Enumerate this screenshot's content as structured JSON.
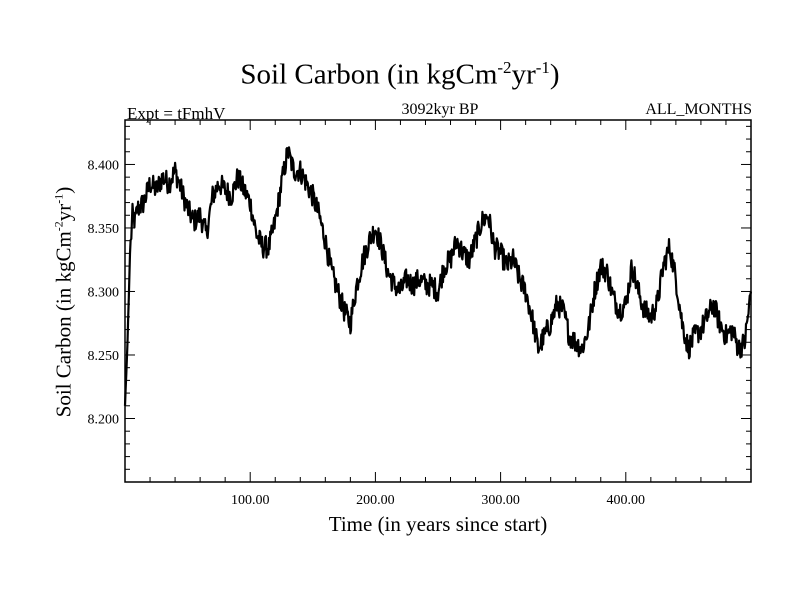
{
  "chart_data": {
    "type": "line",
    "title": {
      "main": "Soil Carbon (in kgCm",
      "exp1": "-2",
      "mid": "yr",
      "exp2": "-1",
      "end": ")"
    },
    "subtitle_left": "Expt = tFmhV",
    "subtitle_center": "3092kyr BP",
    "subtitle_right": "ALL_MONTHS",
    "xlabel": "Time (in years since start)",
    "ylabel": {
      "main": "Soil Carbon (in kgCm",
      "exp1": "-2",
      "mid": "yr",
      "exp2": "-1",
      "end": ")"
    },
    "xlim": [
      0,
      500
    ],
    "ylim": [
      8.15,
      8.435
    ],
    "xticks": [
      100,
      200,
      300,
      400
    ],
    "xtick_labels": [
      "100.00",
      "200.00",
      "300.00",
      "400.00"
    ],
    "yticks": [
      8.2,
      8.25,
      8.3,
      8.35,
      8.4
    ],
    "ytick_labels": [
      "8.200",
      "8.250",
      "8.300",
      "8.350",
      "8.400"
    ],
    "series": [
      {
        "name": "Soil Carbon",
        "color": "#000000",
        "x": [
          0,
          2,
          4,
          6,
          8,
          10,
          15,
          20,
          25,
          30,
          35,
          40,
          45,
          50,
          55,
          60,
          65,
          70,
          75,
          80,
          85,
          90,
          95,
          100,
          105,
          110,
          115,
          120,
          125,
          130,
          135,
          140,
          145,
          150,
          155,
          160,
          165,
          170,
          175,
          180,
          185,
          190,
          195,
          200,
          205,
          210,
          215,
          220,
          225,
          230,
          235,
          240,
          245,
          250,
          255,
          260,
          265,
          270,
          275,
          280,
          285,
          290,
          295,
          300,
          305,
          310,
          315,
          320,
          325,
          330,
          335,
          340,
          345,
          350,
          355,
          360,
          365,
          370,
          375,
          380,
          385,
          390,
          395,
          400,
          405,
          410,
          415,
          420,
          425,
          430,
          435,
          440,
          445,
          450,
          455,
          460,
          465,
          470,
          475,
          480,
          485,
          490,
          495,
          500
        ],
        "y": [
          8.21,
          8.26,
          8.33,
          8.36,
          8.355,
          8.365,
          8.37,
          8.385,
          8.38,
          8.39,
          8.385,
          8.395,
          8.38,
          8.365,
          8.355,
          8.36,
          8.345,
          8.375,
          8.385,
          8.38,
          8.375,
          8.39,
          8.38,
          8.37,
          8.345,
          8.335,
          8.335,
          8.355,
          8.385,
          8.41,
          8.395,
          8.395,
          8.385,
          8.375,
          8.36,
          8.34,
          8.315,
          8.3,
          8.285,
          8.275,
          8.305,
          8.325,
          8.34,
          8.35,
          8.335,
          8.315,
          8.305,
          8.3,
          8.31,
          8.305,
          8.31,
          8.305,
          8.305,
          8.3,
          8.32,
          8.325,
          8.34,
          8.33,
          8.325,
          8.34,
          8.355,
          8.36,
          8.335,
          8.33,
          8.32,
          8.325,
          8.31,
          8.3,
          8.28,
          8.255,
          8.265,
          8.275,
          8.29,
          8.285,
          8.265,
          8.26,
          8.255,
          8.27,
          8.3,
          8.32,
          8.315,
          8.295,
          8.285,
          8.29,
          8.32,
          8.3,
          8.285,
          8.28,
          8.29,
          8.32,
          8.335,
          8.31,
          8.275,
          8.255,
          8.265,
          8.27,
          8.28,
          8.29,
          8.275,
          8.265,
          8.27,
          8.255,
          8.26,
          8.3
        ]
      }
    ]
  }
}
